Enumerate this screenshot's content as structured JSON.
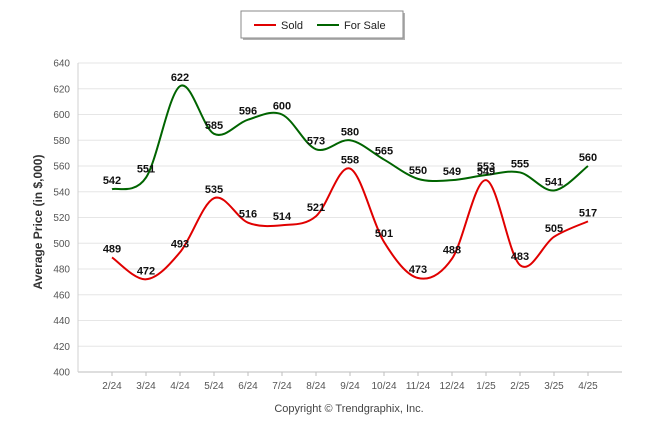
{
  "chart_data": {
    "type": "line",
    "title": "",
    "xlabel": "",
    "ylabel": "Average Price (in $,000)",
    "ylim": [
      400,
      640
    ],
    "yticks": [
      400,
      420,
      440,
      460,
      480,
      500,
      520,
      540,
      560,
      580,
      600,
      620,
      640
    ],
    "grid": true,
    "legend_position": "top-center",
    "categories": [
      "2/24",
      "3/24",
      "4/24",
      "5/24",
      "6/24",
      "7/24",
      "8/24",
      "9/24",
      "10/24",
      "11/24",
      "12/24",
      "1/25",
      "2/25",
      "3/25",
      "4/25"
    ],
    "series": [
      {
        "name": "Sold",
        "color": "#e00000",
        "values": [
          489,
          472,
          493,
          535,
          516,
          514,
          521,
          558,
          501,
          473,
          488,
          549,
          483,
          505,
          517
        ]
      },
      {
        "name": "For Sale",
        "color": "#006400",
        "values": [
          542,
          551,
          622,
          585,
          596,
          600,
          573,
          580,
          565,
          550,
          549,
          553,
          555,
          541,
          560
        ]
      }
    ],
    "footer": "Copyright © Trendgraphix, Inc."
  }
}
